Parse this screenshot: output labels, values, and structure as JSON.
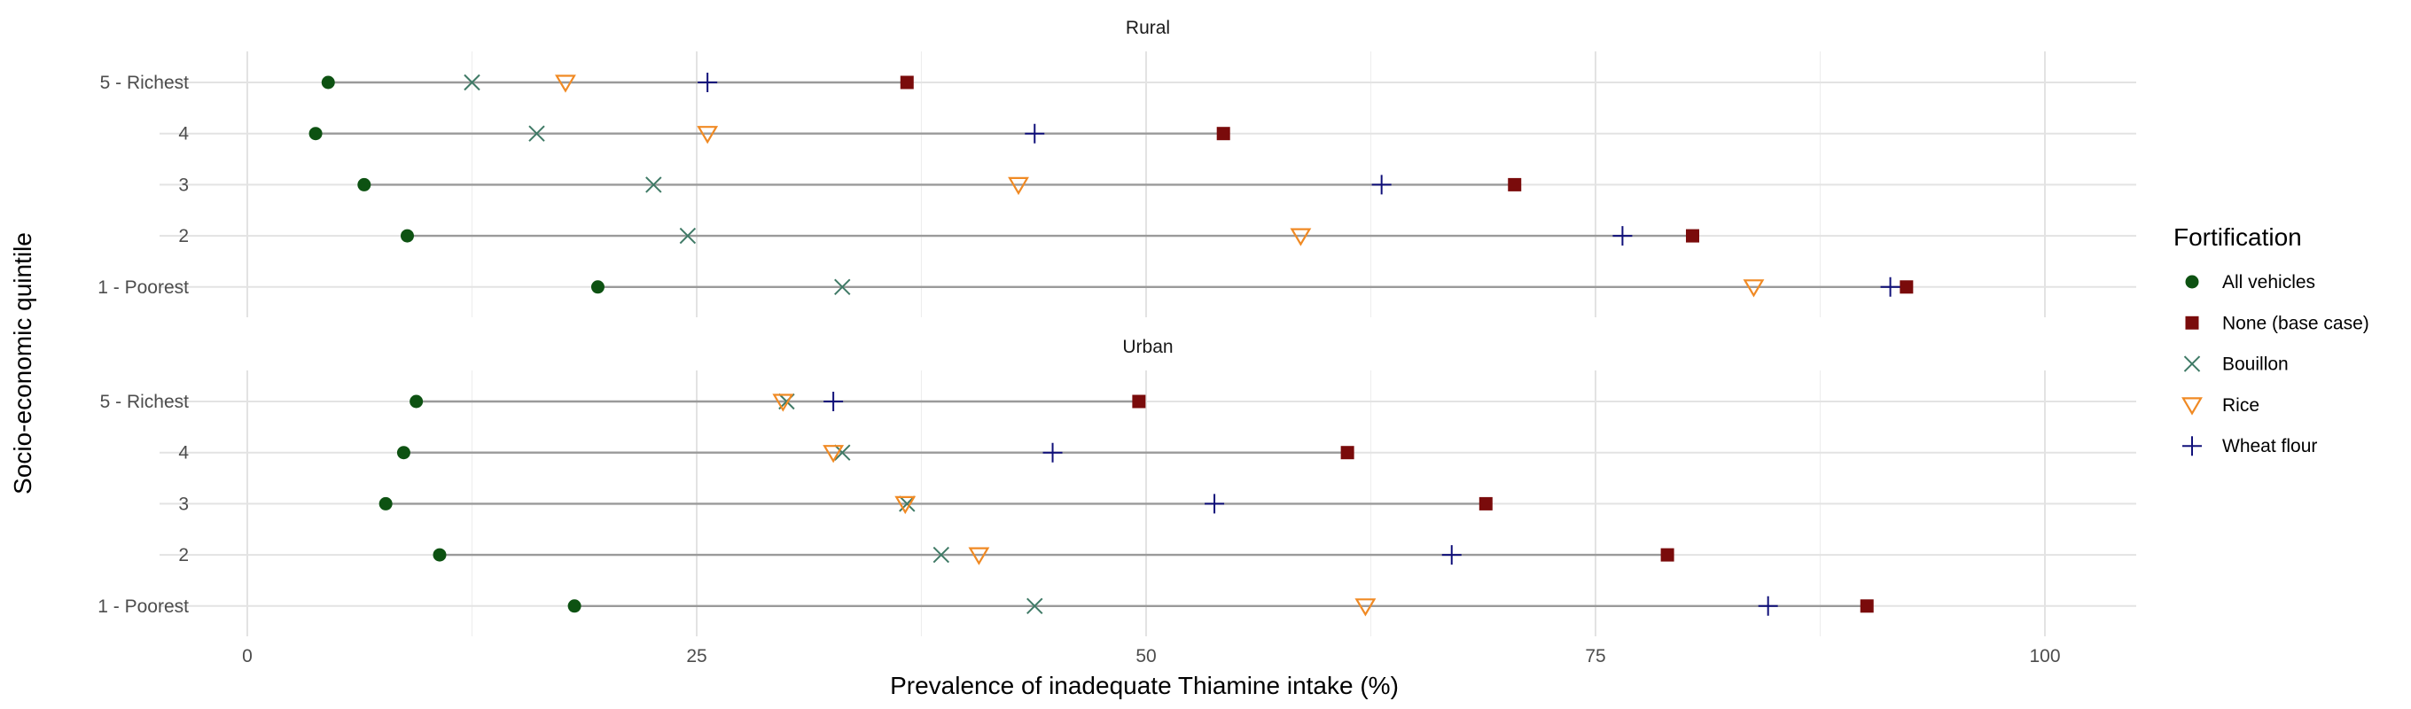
{
  "chart_data": {
    "type": "dumbbell",
    "xlabel": "Prevalence of inadequate Thiamine intake (%)",
    "ylabel": "Socio-economic quintile",
    "xlim": [
      -4.5,
      105.5
    ],
    "xticks": [
      0,
      25,
      50,
      75,
      100
    ],
    "x_tick_labels": [
      "0",
      "25",
      "50",
      "75",
      "100"
    ],
    "grid": true,
    "legend": {
      "title": "Fortification",
      "position": "right",
      "items": [
        {
          "key": "all",
          "label": "All vehicles",
          "shape": "circle",
          "color": "#0d5212"
        },
        {
          "key": "none",
          "label": "None (base case)",
          "shape": "square",
          "color": "#7a0b0b"
        },
        {
          "key": "bouillon",
          "label": "Bouillon",
          "shape": "x",
          "color": "#3f7a66"
        },
        {
          "key": "rice",
          "label": "Rice",
          "shape": "triangle-down",
          "color": "#f08a24"
        },
        {
          "key": "wheat",
          "label": "Wheat flour",
          "shape": "plus",
          "color": "#10107a"
        }
      ]
    },
    "categories": [
      "5 - Richest",
      "4",
      "3",
      "2",
      "1 - Poorest"
    ],
    "panels": [
      {
        "title": "Rural",
        "rows": [
          {
            "category": "5 - Richest",
            "all": 4.5,
            "bouillon": 12.5,
            "rice": 17.7,
            "wheat": 25.6,
            "none": 36.7
          },
          {
            "category": "4",
            "all": 3.8,
            "bouillon": 16.1,
            "rice": 25.6,
            "wheat": 43.8,
            "none": 54.3
          },
          {
            "category": "3",
            "all": 6.5,
            "bouillon": 22.6,
            "rice": 42.9,
            "wheat": 63.1,
            "none": 70.5
          },
          {
            "category": "2",
            "all": 8.9,
            "bouillon": 24.5,
            "rice": 58.6,
            "wheat": 76.5,
            "none": 80.4
          },
          {
            "category": "1 - Poorest",
            "all": 19.5,
            "bouillon": 33.1,
            "rice": 83.8,
            "wheat": 91.4,
            "none": 92.3
          }
        ]
      },
      {
        "title": "Urban",
        "rows": [
          {
            "category": "5 - Richest",
            "all": 9.4,
            "bouillon": 30.0,
            "rice": 29.8,
            "wheat": 32.6,
            "none": 49.6
          },
          {
            "category": "4",
            "all": 8.7,
            "bouillon": 33.1,
            "rice": 32.6,
            "wheat": 44.8,
            "none": 61.2
          },
          {
            "category": "3",
            "all": 7.7,
            "bouillon": 36.7,
            "rice": 36.6,
            "wheat": 53.8,
            "none": 68.9
          },
          {
            "category": "2",
            "all": 10.7,
            "bouillon": 38.6,
            "rice": 40.7,
            "wheat": 67.0,
            "none": 79.0
          },
          {
            "category": "1 - Poorest",
            "all": 18.2,
            "bouillon": 43.8,
            "rice": 62.2,
            "wheat": 84.6,
            "none": 90.1
          }
        ]
      }
    ]
  }
}
